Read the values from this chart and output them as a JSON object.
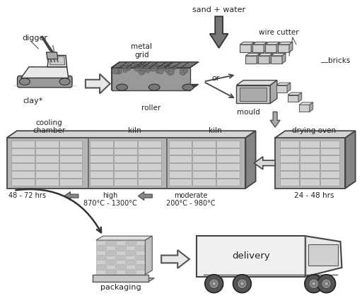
{
  "bg_color": "#ffffff",
  "labels": {
    "digger": "digger",
    "clay": "clay*",
    "metal_grid": "metal\ngrid",
    "roller": "roller",
    "sand_water": "sand + water",
    "or": "or",
    "mould": "mould",
    "wire_cutter": "wire cutter",
    "bricks": "bricks",
    "drying_oven": "drying oven",
    "drying_hrs": "24 - 48 hrs",
    "kiln1": "kiln",
    "kiln2": "kiln",
    "cooling_chamber": "cooling\nchamber",
    "cooling_hrs": "48 - 72 hrs",
    "high_temp": "high\n870°C - 1300°C",
    "moderate_temp": "moderate\n200°C - 980°C",
    "packaging": "packaging",
    "delivery": "delivery"
  },
  "colors": {
    "text_color": "#222222",
    "arrow_fill": "#d8d8d8",
    "arrow_edge": "#555555",
    "sand_arrow_fill": "#888888",
    "sand_arrow_edge": "#333333",
    "building_front": "#b8b8b8",
    "building_top": "#d8d8d8",
    "building_side": "#888888",
    "brick_light": "#d0d0d0",
    "brick_mid": "#c0c0c0",
    "brick_dark": "#aaaaaa",
    "brick_edge": "#888888",
    "truck_body": "#f0f0f0",
    "truck_edge": "#444444",
    "wheel_fill": "#666666",
    "wheel_edge": "#333333"
  },
  "figsize": [
    5.12,
    4.22
  ],
  "dpi": 100
}
